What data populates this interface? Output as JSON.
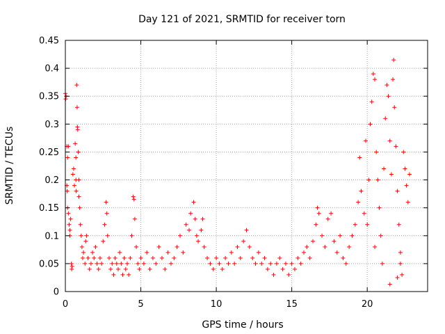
{
  "chart_data": {
    "type": "scatter",
    "title": "Day 121 of 2021, SRMTID for receiver torn",
    "xlabel": "GPS time / hours",
    "ylabel": "SRMTID / TECUs",
    "xlim": [
      0,
      24
    ],
    "ylim": [
      0,
      0.45
    ],
    "xticks": [
      0,
      5,
      10,
      15,
      20
    ],
    "xtick_labels": [
      "0",
      "5",
      "10",
      "15",
      "20"
    ],
    "yticks": [
      0,
      0.05,
      0.1,
      0.15,
      0.2,
      0.25,
      0.3,
      0.35,
      0.4,
      0.45
    ],
    "ytick_labels": [
      "0",
      "0.05",
      "0.1",
      "0.15",
      "0.2",
      "0.25",
      "0.3",
      "0.35",
      "0.4",
      "0.45"
    ],
    "grid": true,
    "marker": "+",
    "color": "#ff0000",
    "series": [
      {
        "name": "SRMTID",
        "points": [
          [
            0.0,
            0.355
          ],
          [
            0.02,
            0.345
          ],
          [
            0.05,
            0.35
          ],
          [
            0.1,
            0.26
          ],
          [
            0.15,
            0.24
          ],
          [
            0.2,
            0.26
          ],
          [
            0.1,
            0.19
          ],
          [
            0.12,
            0.18
          ],
          [
            0.15,
            0.15
          ],
          [
            0.2,
            0.14
          ],
          [
            0.25,
            0.12
          ],
          [
            0.3,
            0.11
          ],
          [
            0.3,
            0.1
          ],
          [
            0.35,
            0.13
          ],
          [
            0.4,
            0.05
          ],
          [
            0.42,
            0.04
          ],
          [
            0.45,
            0.045
          ],
          [
            0.5,
            0.21
          ],
          [
            0.55,
            0.22
          ],
          [
            0.6,
            0.19
          ],
          [
            0.65,
            0.265
          ],
          [
            0.7,
            0.24
          ],
          [
            0.7,
            0.2
          ],
          [
            0.72,
            0.18
          ],
          [
            0.75,
            0.37
          ],
          [
            0.78,
            0.33
          ],
          [
            0.8,
            0.295
          ],
          [
            0.82,
            0.29
          ],
          [
            0.85,
            0.25
          ],
          [
            0.9,
            0.2
          ],
          [
            0.9,
            0.17
          ],
          [
            0.95,
            0.15
          ],
          [
            1.0,
            0.12
          ],
          [
            1.05,
            0.1
          ],
          [
            1.1,
            0.08
          ],
          [
            1.15,
            0.06
          ],
          [
            1.2,
            0.07
          ],
          [
            1.3,
            0.05
          ],
          [
            1.35,
            0.09
          ],
          [
            1.4,
            0.1
          ],
          [
            1.5,
            0.06
          ],
          [
            1.6,
            0.04
          ],
          [
            1.7,
            0.05
          ],
          [
            1.8,
            0.07
          ],
          [
            1.9,
            0.06
          ],
          [
            2.0,
            0.08
          ],
          [
            2.1,
            0.05
          ],
          [
            2.2,
            0.04
          ],
          [
            2.3,
            0.06
          ],
          [
            2.4,
            0.05
          ],
          [
            2.5,
            0.09
          ],
          [
            2.6,
            0.12
          ],
          [
            2.7,
            0.16
          ],
          [
            2.75,
            0.14
          ],
          [
            2.8,
            0.1
          ],
          [
            2.9,
            0.06
          ],
          [
            3.0,
            0.04
          ],
          [
            3.1,
            0.05
          ],
          [
            3.2,
            0.03
          ],
          [
            3.3,
            0.06
          ],
          [
            3.4,
            0.05
          ],
          [
            3.5,
            0.04
          ],
          [
            3.6,
            0.07
          ],
          [
            3.7,
            0.05
          ],
          [
            3.8,
            0.03
          ],
          [
            3.9,
            0.06
          ],
          [
            4.0,
            0.04
          ],
          [
            4.1,
            0.05
          ],
          [
            4.2,
            0.03
          ],
          [
            4.3,
            0.06
          ],
          [
            4.4,
            0.1
          ],
          [
            4.5,
            0.17
          ],
          [
            4.55,
            0.165
          ],
          [
            4.6,
            0.13
          ],
          [
            4.7,
            0.08
          ],
          [
            4.8,
            0.05
          ],
          [
            4.9,
            0.04
          ],
          [
            5.0,
            0.06
          ],
          [
            5.2,
            0.05
          ],
          [
            5.4,
            0.07
          ],
          [
            5.6,
            0.04
          ],
          [
            5.8,
            0.06
          ],
          [
            6.0,
            0.05
          ],
          [
            6.2,
            0.08
          ],
          [
            6.4,
            0.06
          ],
          [
            6.6,
            0.04
          ],
          [
            6.8,
            0.07
          ],
          [
            7.0,
            0.05
          ],
          [
            7.2,
            0.06
          ],
          [
            7.4,
            0.08
          ],
          [
            7.6,
            0.1
          ],
          [
            7.8,
            0.07
          ],
          [
            8.0,
            0.12
          ],
          [
            8.2,
            0.11
          ],
          [
            8.3,
            0.14
          ],
          [
            8.5,
            0.16
          ],
          [
            8.6,
            0.13
          ],
          [
            8.7,
            0.1
          ],
          [
            8.8,
            0.09
          ],
          [
            9.0,
            0.11
          ],
          [
            9.1,
            0.13
          ],
          [
            9.2,
            0.08
          ],
          [
            9.4,
            0.06
          ],
          [
            9.6,
            0.05
          ],
          [
            9.8,
            0.04
          ],
          [
            10.0,
            0.06
          ],
          [
            10.2,
            0.05
          ],
          [
            10.4,
            0.04
          ],
          [
            10.6,
            0.06
          ],
          [
            10.8,
            0.05
          ],
          [
            11.0,
            0.07
          ],
          [
            11.2,
            0.05
          ],
          [
            11.4,
            0.08
          ],
          [
            11.6,
            0.06
          ],
          [
            11.8,
            0.09
          ],
          [
            12.0,
            0.11
          ],
          [
            12.2,
            0.08
          ],
          [
            12.4,
            0.06
          ],
          [
            12.6,
            0.05
          ],
          [
            12.8,
            0.07
          ],
          [
            13.0,
            0.05
          ],
          [
            13.2,
            0.06
          ],
          [
            13.4,
            0.04
          ],
          [
            13.6,
            0.05
          ],
          [
            13.8,
            0.03
          ],
          [
            14.0,
            0.05
          ],
          [
            14.2,
            0.06
          ],
          [
            14.4,
            0.04
          ],
          [
            14.6,
            0.05
          ],
          [
            14.8,
            0.03
          ],
          [
            15.0,
            0.05
          ],
          [
            15.2,
            0.04
          ],
          [
            15.4,
            0.06
          ],
          [
            15.6,
            0.05
          ],
          [
            15.8,
            0.07
          ],
          [
            16.0,
            0.08
          ],
          [
            16.2,
            0.06
          ],
          [
            16.4,
            0.09
          ],
          [
            16.6,
            0.12
          ],
          [
            16.7,
            0.15
          ],
          [
            16.8,
            0.14
          ],
          [
            17.0,
            0.1
          ],
          [
            17.2,
            0.08
          ],
          [
            17.4,
            0.13
          ],
          [
            17.6,
            0.14
          ],
          [
            17.8,
            0.09
          ],
          [
            18.0,
            0.07
          ],
          [
            18.2,
            0.1
          ],
          [
            18.4,
            0.06
          ],
          [
            18.6,
            0.05
          ],
          [
            18.8,
            0.08
          ],
          [
            19.0,
            0.1
          ],
          [
            19.2,
            0.12
          ],
          [
            19.4,
            0.16
          ],
          [
            19.5,
            0.24
          ],
          [
            19.6,
            0.18
          ],
          [
            19.8,
            0.14
          ],
          [
            19.9,
            0.27
          ],
          [
            20.0,
            0.12
          ],
          [
            20.1,
            0.2
          ],
          [
            20.2,
            0.3
          ],
          [
            20.3,
            0.34
          ],
          [
            20.4,
            0.39
          ],
          [
            20.5,
            0.38
          ],
          [
            20.6,
            0.25
          ],
          [
            20.7,
            0.2
          ],
          [
            20.8,
            0.15
          ],
          [
            20.9,
            0.1
          ],
          [
            21.0,
            0.05
          ],
          [
            21.1,
            0.22
          ],
          [
            21.2,
            0.31
          ],
          [
            21.3,
            0.37
          ],
          [
            21.4,
            0.35
          ],
          [
            21.5,
            0.27
          ],
          [
            21.6,
            0.21
          ],
          [
            21.7,
            0.38
          ],
          [
            21.75,
            0.415
          ],
          [
            21.8,
            0.33
          ],
          [
            21.9,
            0.26
          ],
          [
            22.0,
            0.18
          ],
          [
            22.1,
            0.12
          ],
          [
            22.2,
            0.05
          ],
          [
            22.3,
            0.03
          ],
          [
            22.4,
            0.25
          ],
          [
            22.5,
            0.22
          ],
          [
            22.6,
            0.19
          ],
          [
            22.7,
            0.16
          ],
          [
            22.8,
            0.21
          ],
          [
            21.5,
            0.013
          ],
          [
            22.0,
            0.025
          ],
          [
            22.2,
            0.07
          ],
          [
            20.5,
            0.08
          ]
        ]
      }
    ]
  }
}
